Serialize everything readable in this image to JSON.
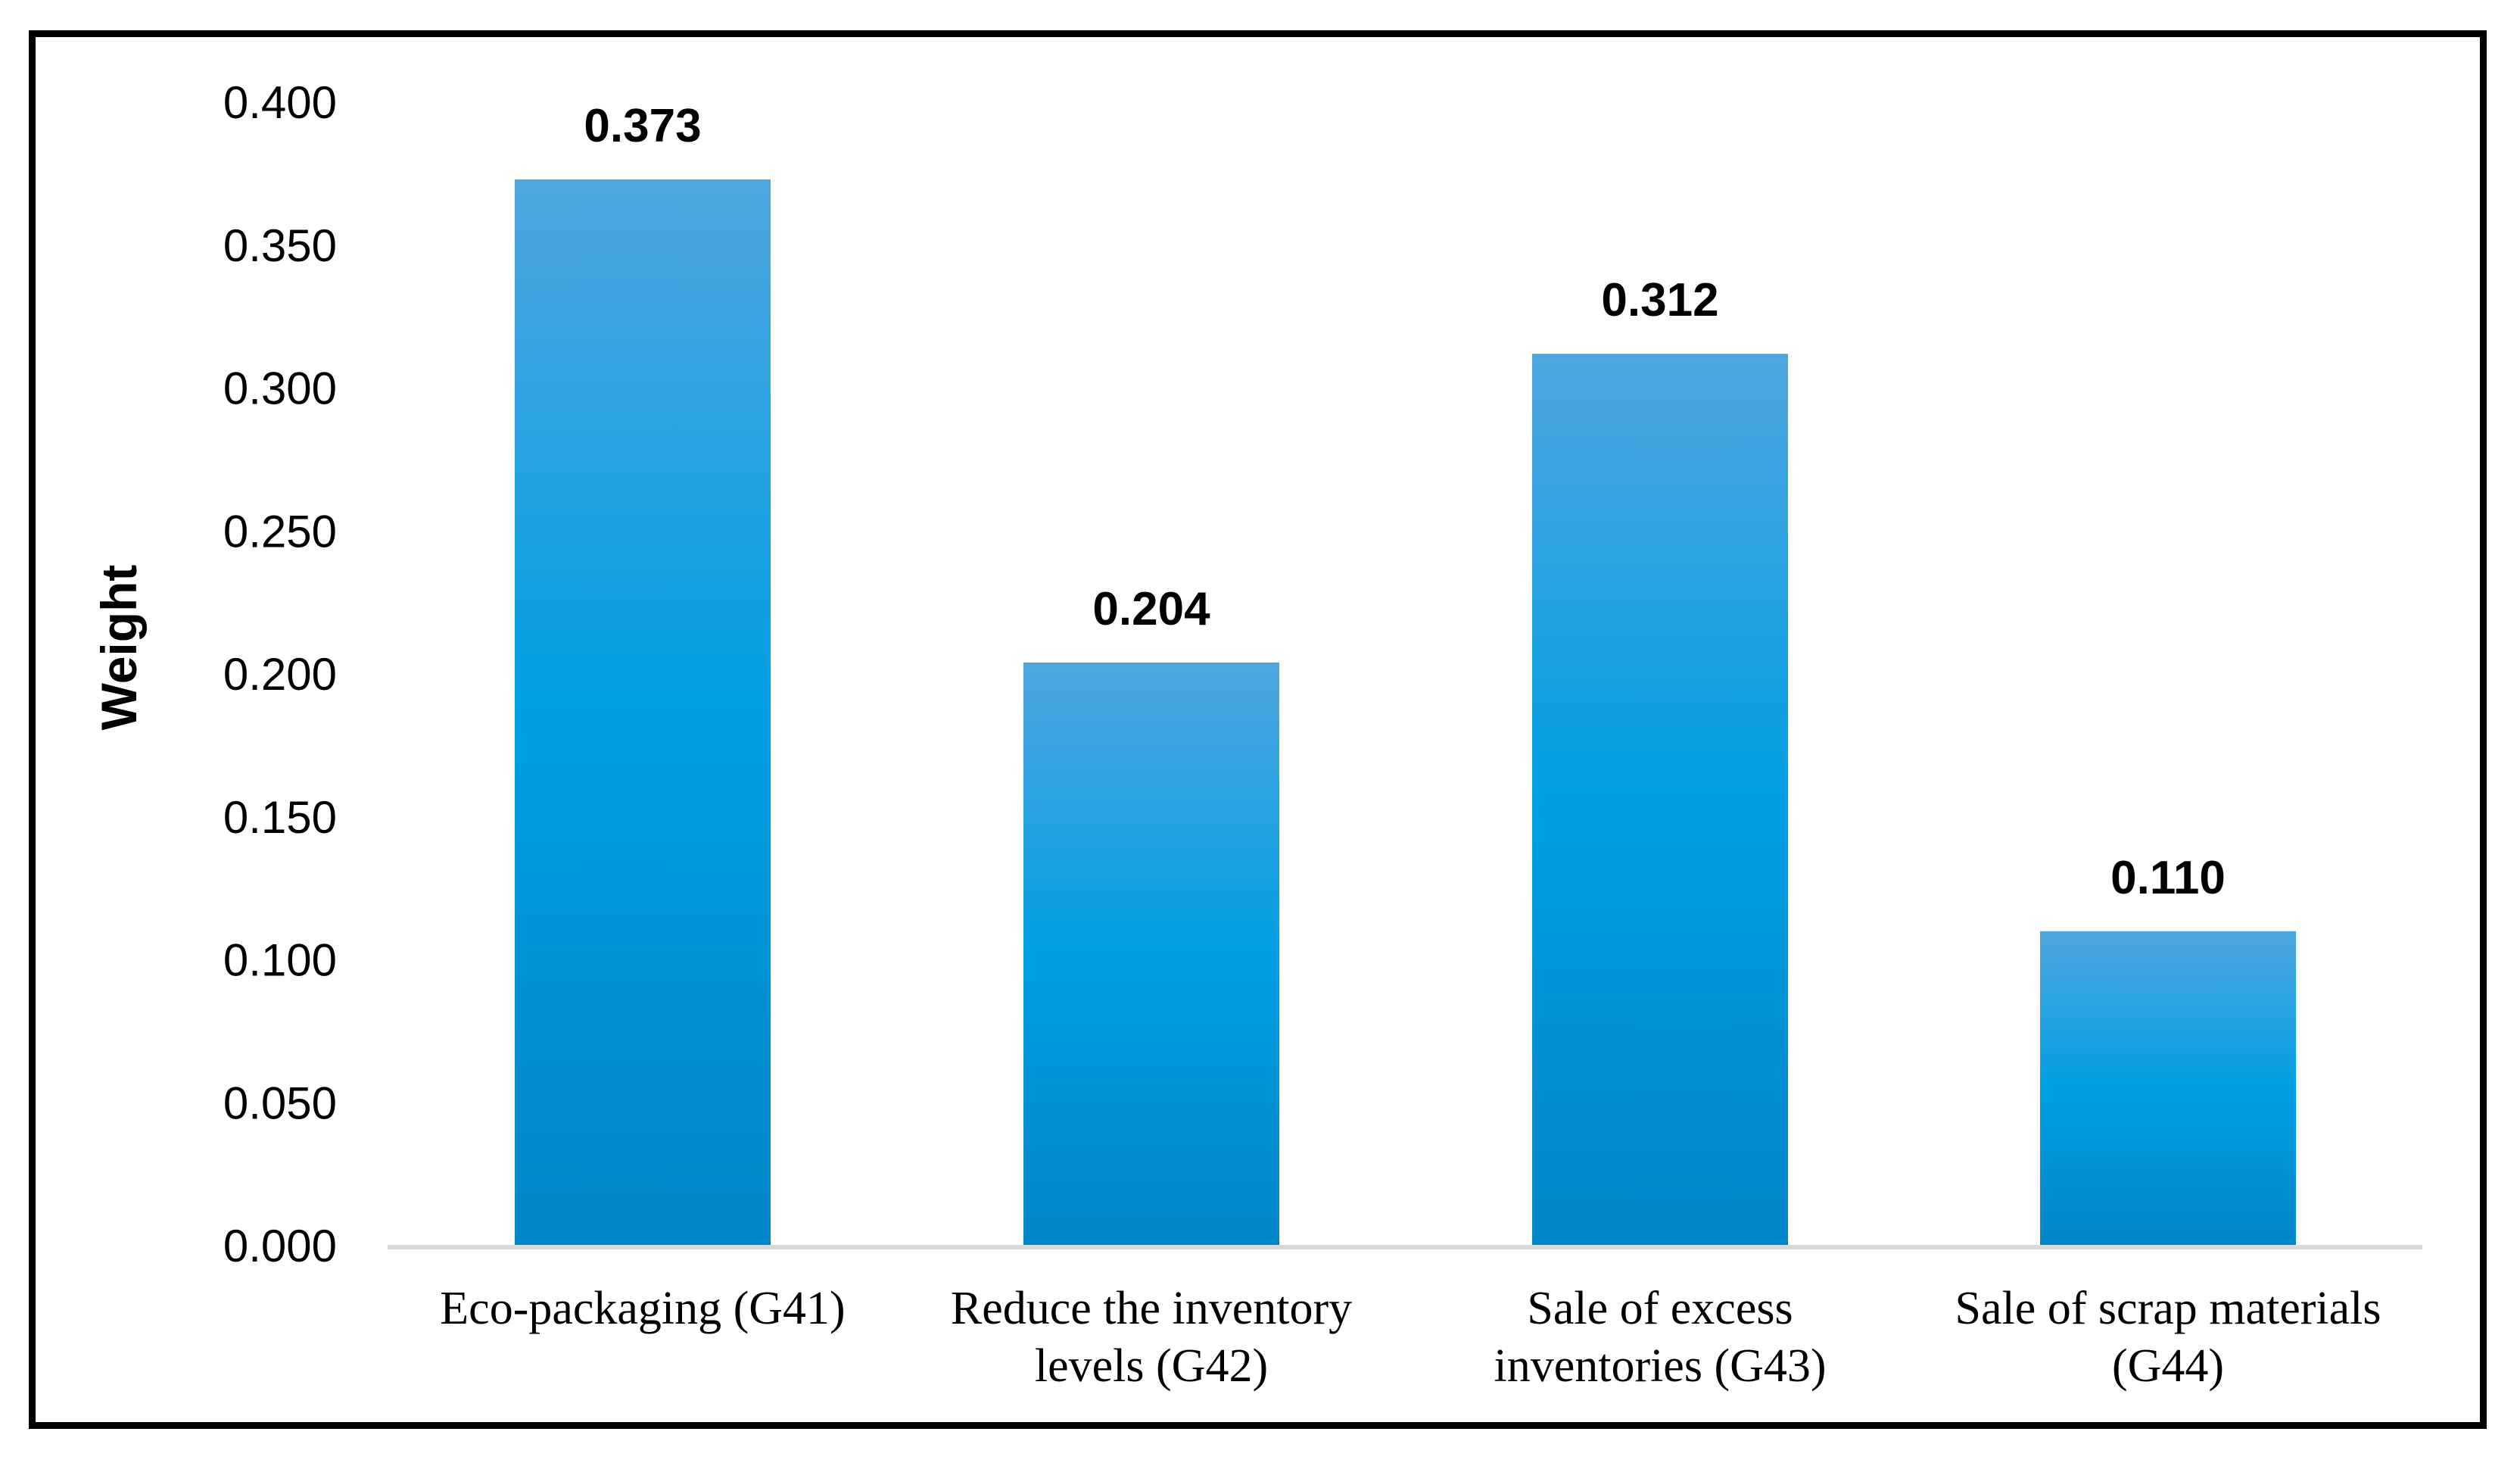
{
  "chart_data": {
    "type": "bar",
    "title": "",
    "xlabel": "",
    "ylabel": "Weight",
    "ylim": [
      0,
      0.4
    ],
    "y_ticks": [
      "0.000",
      "0.050",
      "0.100",
      "0.150",
      "0.200",
      "0.250",
      "0.300",
      "0.350",
      "0.400"
    ],
    "y_tick_values": [
      0,
      0.05,
      0.1,
      0.15,
      0.2,
      0.25,
      0.3,
      0.35,
      0.4
    ],
    "categories": [
      [
        "Eco-packaging (G41)"
      ],
      [
        "Reduce the inventory",
        "levels (G42)"
      ],
      [
        "Sale of excess",
        "inventories (G43)"
      ],
      [
        "Sale of scrap materials",
        "(G44)"
      ]
    ],
    "values": [
      0.373,
      0.204,
      0.312,
      0.11
    ],
    "data_labels": [
      "0.373",
      "0.204",
      "0.312",
      "0.110"
    ],
    "grid": false,
    "legend": "none",
    "colors": {
      "bar_top": "#4FA6DE",
      "bar_mid": "#009FE3",
      "bar_bottom": "#0086C8",
      "axis": "#D9D9D9",
      "frame": "#000000"
    }
  }
}
